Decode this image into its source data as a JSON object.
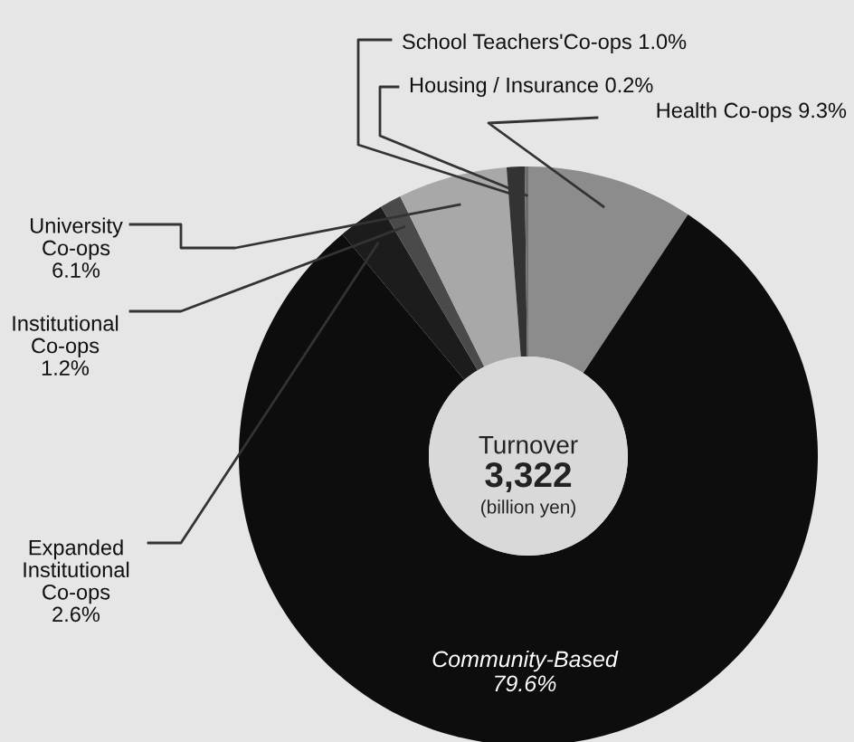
{
  "chart_data": {
    "type": "donut",
    "categories": [
      "Health Co-ops",
      "Community-Based",
      "Expanded\nInstitutional\nCo-ops",
      "Institutional\nCo-ops",
      "University\nCo-ops",
      "School Teachers'Co-ops",
      "Housing / Insurance"
    ],
    "values": [
      9.3,
      79.6,
      2.6,
      1.2,
      6.1,
      1.0,
      0.2
    ],
    "colors": [
      "#8c8c8c",
      "#0d0d0d",
      "#1c1c1c",
      "#4a4a4a",
      "#a8a8a8",
      "#333333",
      "#6e6e6e"
    ],
    "value_labels": [
      "9.3%",
      "79.6%",
      "2.6%",
      "1.2%",
      "6.1%",
      "1.0%",
      "0.2%"
    ],
    "annotations": [
      "Turnover",
      "3,322",
      "(billion yen)"
    ]
  }
}
